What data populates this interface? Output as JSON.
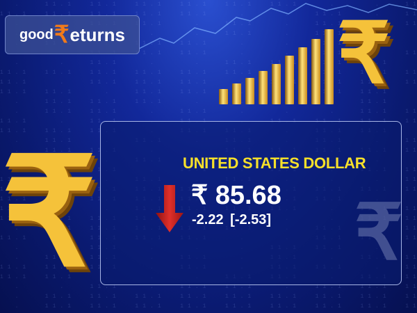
{
  "logo": {
    "part1": "good",
    "part2": "₹",
    "part3": "eturns"
  },
  "currency": {
    "name": "UNITED STATES DOLLAR",
    "price": "₹ 85.68",
    "change": "-2.22",
    "change_pct": "[-2.53]",
    "direction": "down"
  },
  "icons": {
    "trend": "arrow-down-icon",
    "decor": "rupee-icon"
  },
  "colors": {
    "title": "#f7e02a",
    "down": "#c8201e",
    "accent": "#f5c23a",
    "logo_r": "#f07a1a"
  }
}
